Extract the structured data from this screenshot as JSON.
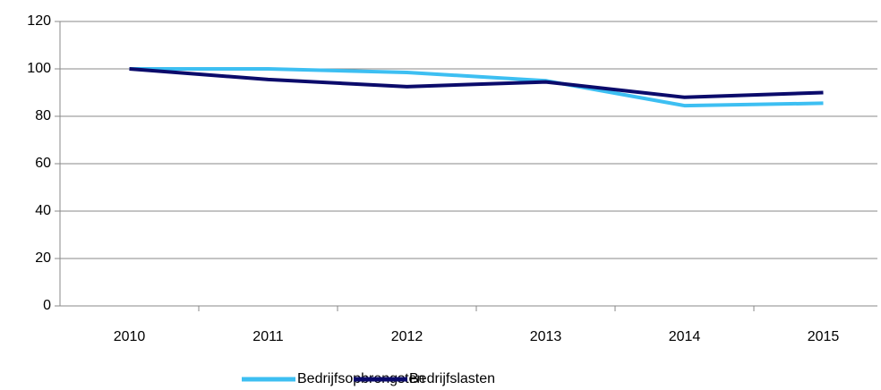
{
  "chart_data": {
    "type": "line",
    "categories": [
      "2010",
      "2011",
      "2012",
      "2013",
      "2014",
      "2015"
    ],
    "series": [
      {
        "name": "Bedrijfsopbrengsten",
        "color": "#3dbff2",
        "values": [
          100,
          100,
          98.5,
          95,
          84.5,
          85.5
        ]
      },
      {
        "name": "Bedrijfslasten",
        "color": "#0b0b6b",
        "values": [
          100,
          95.5,
          92.5,
          94.5,
          88,
          90
        ]
      }
    ],
    "ylim": [
      0,
      120
    ],
    "yticks": [
      0,
      20,
      40,
      60,
      80,
      100,
      120
    ],
    "grid": true,
    "legend": "bottom"
  }
}
